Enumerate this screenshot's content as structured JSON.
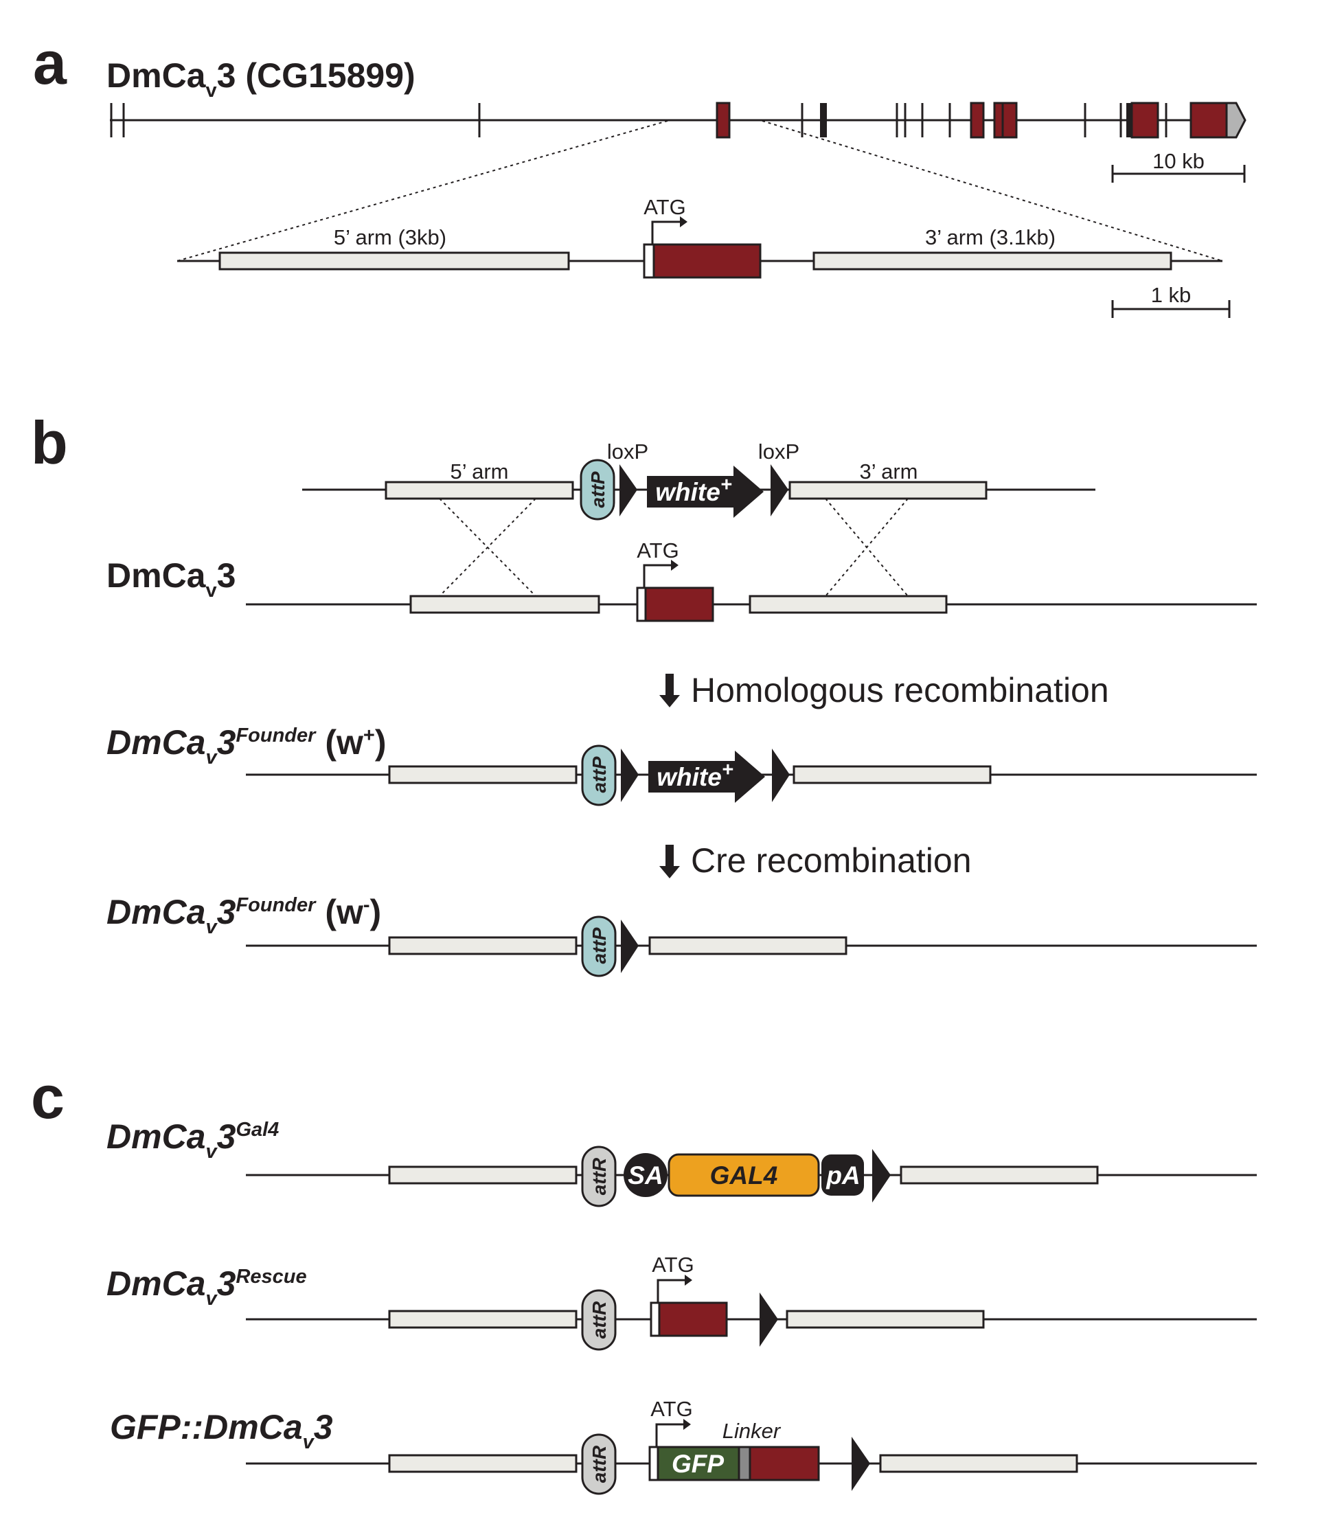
{
  "panels": {
    "a": "a",
    "b": "b",
    "c": "c"
  },
  "panel_a": {
    "gene_name_main": "DmCa",
    "gene_name_sub": "v",
    "gene_name_tail": "3 (CG15899)",
    "scale_bar_top": "10 kb",
    "scale_bar_bottom": "1 kb",
    "arm5_label": "5’ arm (3kb)",
    "arm3_label": "3’ arm (3.1kb)",
    "atg_label": "ATG"
  },
  "panel_b": {
    "donor_arm5": "5’ arm",
    "donor_arm3": "3’ arm",
    "loxp_left": "loxP",
    "loxp_right": "loxP",
    "attp": "attP",
    "white_main": "white",
    "white_sup": "+",
    "wt_main": "DmCa",
    "wt_sub": "v",
    "wt_tail": "3",
    "atg_label": "ATG",
    "step1": "Homologous recombination",
    "step2": "Cre recombination",
    "founder_main": "DmCa",
    "founder_sub": "v",
    "founder_tail": "3",
    "founder_sup": "Founder",
    "founder_w_plus": " (w",
    "w_plus_sup": "+",
    "w_minus_sup": "-",
    "close_paren": ")"
  },
  "panel_c": {
    "gal4_main": "DmCa",
    "gal4_sub": "v",
    "gal4_tail": "3",
    "gal4_sup": "Gal4",
    "attr": "attR",
    "sa": "SA",
    "gal4_box": "GAL4",
    "pa": "pA",
    "rescue_main": "DmCa",
    "rescue_sub": "v",
    "rescue_tail": "3",
    "rescue_sup": "Rescue",
    "atg_label": "ATG",
    "gfp_prefix": "GFP::DmCa",
    "gfp_sub": "v",
    "gfp_tail": "3",
    "gfp_box": "GFP",
    "linker": "Linker"
  },
  "colors": {
    "exon": "#831d22",
    "arm": "#ecebe6",
    "attp": "#a8cfd0",
    "attr": "#cfcfcd",
    "gal4": "#eda11f",
    "gfp": "#3f5b30",
    "linker": "#8a8a8a",
    "dark": "#231f20"
  }
}
